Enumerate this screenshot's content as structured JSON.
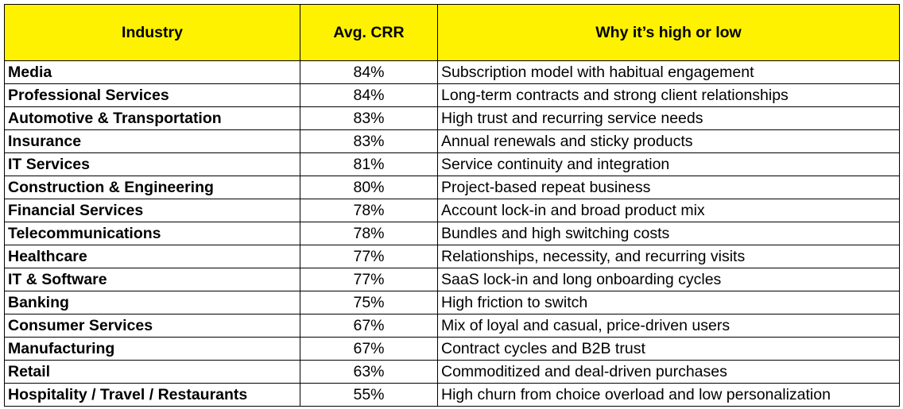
{
  "table": {
    "header": [
      "Industry",
      "Avg. CRR",
      "Why it’s high or low"
    ],
    "rows": [
      [
        "Media",
        "84%",
        "Subscription model with habitual engagement"
      ],
      [
        "Professional Services",
        "84%",
        "Long-term contracts and strong client relationships"
      ],
      [
        "Automotive & Transportation",
        "83%",
        "High trust and recurring service needs"
      ],
      [
        "Insurance",
        "83%",
        "Annual renewals and sticky products"
      ],
      [
        "IT Services",
        "81%",
        "Service continuity and integration"
      ],
      [
        "Construction & Engineering",
        "80%",
        "Project-based repeat business"
      ],
      [
        "Financial Services",
        "78%",
        "Account lock-in and broad product mix"
      ],
      [
        "Telecommunications",
        "78%",
        "Bundles and high switching costs"
      ],
      [
        "Healthcare",
        "77%",
        "Relationships, necessity, and recurring visits"
      ],
      [
        "IT & Software",
        "77%",
        "SaaS lock-in and long onboarding cycles"
      ],
      [
        "Banking",
        "75%",
        "High friction to switch"
      ],
      [
        "Consumer Services",
        "67%",
        "Mix of loyal and casual, price-driven users"
      ],
      [
        "Manufacturing",
        "67%",
        "Contract cycles and B2B trust"
      ],
      [
        "Retail",
        "63%",
        "Commoditized and deal-driven purchases"
      ],
      [
        "Hospitality / Travel / Restaurants",
        "55%",
        "High churn from choice overload and low personalization"
      ]
    ]
  }
}
